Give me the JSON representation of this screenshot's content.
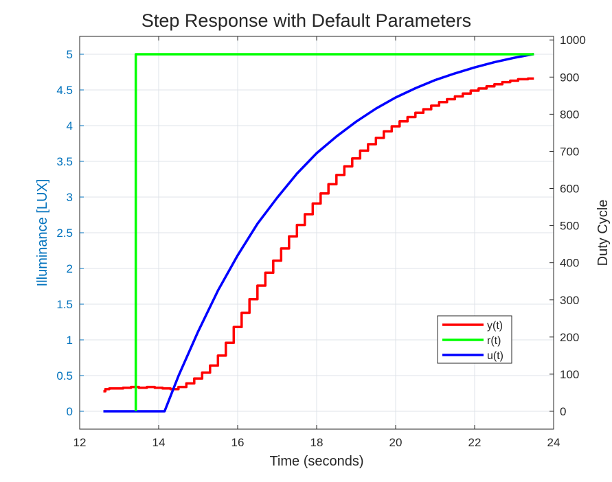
{
  "chart_data": {
    "type": "line",
    "title": "Step Response with Default Parameters",
    "xlabel": "Time (seconds)",
    "ylabel_left": "Illuminance [LUX]",
    "ylabel_right": "Duty Cycle",
    "xlim": [
      12,
      24
    ],
    "ylim_left": [
      -0.25,
      5.25
    ],
    "ylim_right": [
      -48.08,
      1009.6
    ],
    "x_ticks": [
      "12",
      "14",
      "16",
      "18",
      "20",
      "22",
      "24"
    ],
    "y_ticks_left": [
      "0",
      "0.5",
      "1",
      "1.5",
      "2",
      "2.5",
      "3",
      "3.5",
      "4",
      "4.5",
      "5"
    ],
    "y_ticks_right": [
      "0",
      "100",
      "200",
      "300",
      "400",
      "500",
      "600",
      "700",
      "800",
      "900",
      "1000"
    ],
    "grid": true,
    "legend_position": "lower-right",
    "series": [
      {
        "name": "y(t)",
        "axis": "left",
        "color": "#ff0000",
        "x": [
          12.6,
          12.7,
          12.8,
          13.0,
          13.2,
          13.4,
          13.6,
          13.8,
          14.0,
          14.2,
          14.4,
          14.6,
          14.8,
          15.0,
          15.2,
          15.4,
          15.6,
          15.8,
          16.0,
          16.2,
          16.4,
          16.6,
          16.8,
          17.0,
          17.2,
          17.4,
          17.6,
          17.8,
          18.0,
          18.2,
          18.4,
          18.6,
          18.8,
          19.0,
          19.2,
          19.4,
          19.6,
          19.8,
          20.0,
          20.2,
          20.4,
          20.6,
          20.8,
          21.0,
          21.2,
          21.4,
          21.6,
          21.8,
          22.0,
          22.2,
          22.4,
          22.6,
          22.8,
          23.0,
          23.2,
          23.5
        ],
        "y": [
          0.28,
          0.31,
          0.32,
          0.32,
          0.33,
          0.34,
          0.33,
          0.34,
          0.33,
          0.32,
          0.31,
          0.34,
          0.39,
          0.46,
          0.54,
          0.64,
          0.78,
          0.96,
          1.18,
          1.38,
          1.57,
          1.76,
          1.94,
          2.11,
          2.28,
          2.45,
          2.61,
          2.76,
          2.91,
          3.05,
          3.18,
          3.31,
          3.43,
          3.54,
          3.65,
          3.74,
          3.83,
          3.92,
          3.99,
          4.06,
          4.12,
          4.18,
          4.23,
          4.28,
          4.33,
          4.37,
          4.41,
          4.45,
          4.49,
          4.52,
          4.55,
          4.58,
          4.61,
          4.63,
          4.65,
          4.66
        ]
      },
      {
        "name": "r(t)",
        "axis": "left",
        "color": "#00ff00",
        "x": [
          13.42,
          13.42,
          23.5
        ],
        "y": [
          0,
          5,
          5
        ]
      },
      {
        "name": "u(t)",
        "axis": "right",
        "color": "#0000ff",
        "x": [
          12.6,
          14.15,
          14.5,
          15.0,
          15.5,
          16.0,
          16.5,
          17.0,
          17.5,
          18.0,
          18.5,
          19.0,
          19.5,
          20.0,
          20.5,
          21.0,
          21.5,
          22.0,
          22.5,
          23.0,
          23.5
        ],
        "y": [
          0,
          0,
          95,
          215,
          325,
          420,
          505,
          575,
          640,
          695,
          740,
          780,
          815,
          845,
          870,
          892,
          910,
          926,
          940,
          952,
          962
        ]
      }
    ]
  }
}
